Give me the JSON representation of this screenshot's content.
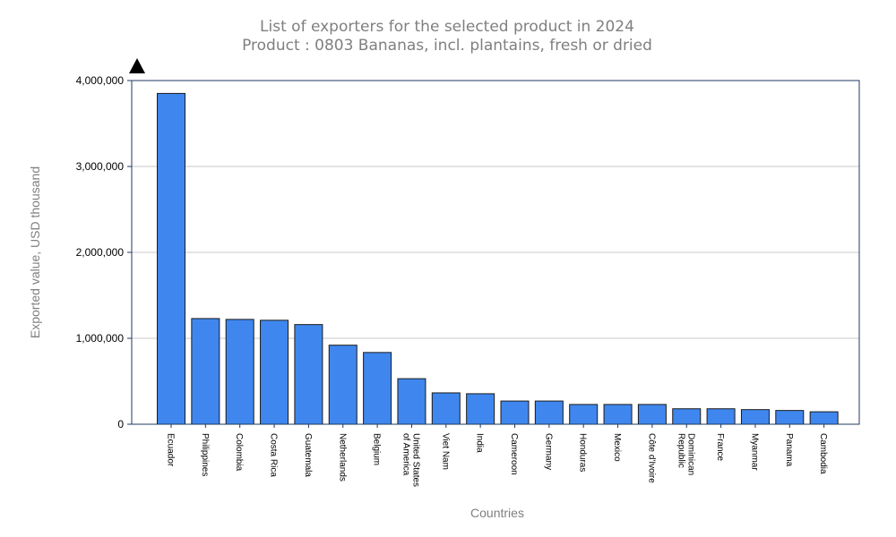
{
  "chart_data": {
    "type": "bar",
    "title": "List of exporters for the selected product in 2024",
    "subtitle": "Product : 0803 Bananas, incl. plantains, fresh or dried",
    "xlabel": "Countries",
    "ylabel": "Exported value, USD thousand",
    "ylim": [
      0,
      4000000
    ],
    "yticks": [
      0,
      1000000,
      2000000,
      3000000,
      4000000
    ],
    "ytick_labels": [
      "0",
      "1,000,000",
      "2,000,000",
      "3,000,000",
      "4,000,000"
    ],
    "grid": true,
    "bar_color": "#3f87ee",
    "categories": [
      [
        "Ecuador"
      ],
      [
        "Philippines"
      ],
      [
        "Colombia"
      ],
      [
        "Costa Rica"
      ],
      [
        "Guatemala"
      ],
      [
        "Netherlands"
      ],
      [
        "Belgium"
      ],
      [
        "United States",
        "of America"
      ],
      [
        "Viet Nam"
      ],
      [
        "India"
      ],
      [
        "Cameroon"
      ],
      [
        "Germany"
      ],
      [
        "Honduras"
      ],
      [
        "Mexico"
      ],
      [
        "Côte d'Ivoire"
      ],
      [
        "Dominican",
        "Republic"
      ],
      [
        "France"
      ],
      [
        "Myanmar"
      ],
      [
        "Panama"
      ],
      [
        "Cambodia"
      ]
    ],
    "values": [
      3850000,
      1230000,
      1220000,
      1210000,
      1160000,
      920000,
      835000,
      530000,
      365000,
      355000,
      270000,
      270000,
      230000,
      230000,
      230000,
      180000,
      180000,
      170000,
      160000,
      145000
    ]
  }
}
